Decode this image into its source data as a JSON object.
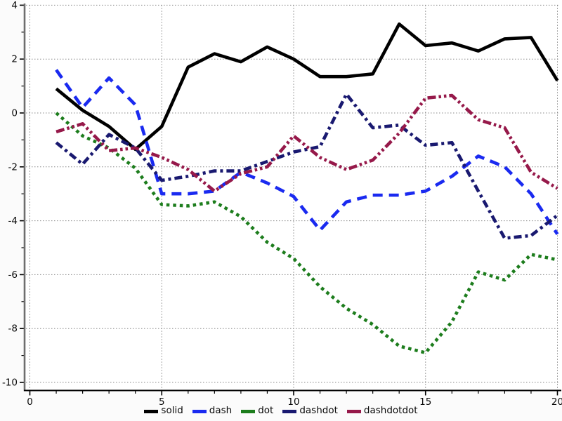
{
  "chart_data": {
    "type": "line",
    "title": "",
    "xlabel": "",
    "ylabel": "",
    "xlim": [
      0,
      20
    ],
    "ylim": [
      -10,
      4
    ],
    "x_ticks_major": [
      0,
      5,
      10,
      15,
      20
    ],
    "x_tick_minor_step": 1,
    "y_ticks_major": [
      4,
      2,
      0,
      -2,
      -4,
      -6,
      -8,
      -10
    ],
    "y_tick_minor_step": 1,
    "grid": true,
    "grid_style": "dotted",
    "legend_position": "bottom-center",
    "x": [
      1,
      2,
      3,
      4,
      5,
      6,
      7,
      8,
      9,
      10,
      11,
      12,
      13,
      14,
      15,
      16,
      17,
      18,
      19,
      20
    ],
    "series": [
      {
        "name": "solid",
        "line_style": "solid",
        "color": "#000000",
        "values": [
          0.9,
          0.1,
          -0.5,
          -1.35,
          -0.5,
          1.7,
          2.2,
          1.9,
          2.45,
          2.0,
          1.35,
          1.35,
          1.45,
          3.3,
          2.5,
          2.6,
          2.3,
          2.75,
          2.8,
          1.2
        ]
      },
      {
        "name": "dash",
        "line_style": "dash",
        "color": "#1a2af0",
        "values": [
          1.6,
          0.2,
          1.3,
          0.3,
          -3.0,
          -3.0,
          -2.9,
          -2.2,
          -2.6,
          -3.1,
          -4.35,
          -3.3,
          -3.05,
          -3.05,
          -2.9,
          -2.35,
          -1.6,
          -2.0,
          -3.0,
          -4.5
        ]
      },
      {
        "name": "dot",
        "line_style": "dot",
        "color": "#1d7d1d",
        "values": [
          0.0,
          -0.85,
          -1.3,
          -2.05,
          -3.4,
          -3.45,
          -3.3,
          -3.85,
          -4.8,
          -5.4,
          -6.45,
          -7.25,
          -7.85,
          -8.65,
          -8.9,
          -7.75,
          -5.9,
          -6.2,
          -5.25,
          -5.45
        ]
      },
      {
        "name": "dashdot",
        "line_style": "dashdot",
        "color": "#191970",
        "values": [
          -1.1,
          -1.9,
          -0.8,
          -1.3,
          -2.5,
          -2.35,
          -2.15,
          -2.15,
          -1.8,
          -1.45,
          -1.25,
          0.7,
          -0.55,
          -0.45,
          -1.2,
          -1.1,
          -2.9,
          -4.65,
          -4.55,
          -3.8
        ]
      },
      {
        "name": "dashdotdot",
        "line_style": "dashdotdot",
        "color": "#96194a",
        "values": [
          -0.7,
          -0.4,
          -1.4,
          -1.3,
          -1.65,
          -2.1,
          -2.9,
          -2.25,
          -2.0,
          -0.85,
          -1.65,
          -2.1,
          -1.75,
          -0.75,
          0.55,
          0.65,
          -0.25,
          -0.55,
          -2.2,
          -2.8
        ]
      }
    ],
    "colors": {
      "grid": "#8a8a8a",
      "left_spine": "#6e6e6e",
      "bottom_spine": "#000000",
      "plot_background": "#ffffff",
      "tick_label": "#0a0a0a"
    },
    "legend": [
      "solid",
      "dash",
      "dot",
      "dashdot",
      "dashdotdot"
    ]
  }
}
